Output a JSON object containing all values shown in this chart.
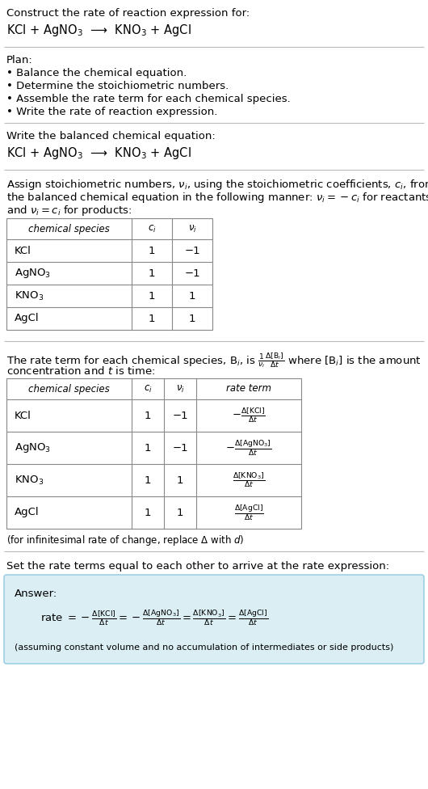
{
  "title_line1": "Construct the rate of reaction expression for:",
  "title_line2": "KCl + AgNO$_3$  ⟶  KNO$_3$ + AgCl",
  "plan_header": "Plan:",
  "plan_items": [
    "• Balance the chemical equation.",
    "• Determine the stoichiometric numbers.",
    "• Assemble the rate term for each chemical species.",
    "• Write the rate of reaction expression."
  ],
  "balanced_header": "Write the balanced chemical equation:",
  "balanced_eq": "KCl + AgNO$_3$  ⟶  KNO$_3$ + AgCl",
  "stoich_intro1": "Assign stoichiometric numbers, $\\nu_i$, using the stoichiometric coefficients, $c_i$, from",
  "stoich_intro2": "the balanced chemical equation in the following manner: $\\nu_i = -c_i$ for reactants",
  "stoich_intro3": "and $\\nu_i = c_i$ for products:",
  "table1_headers": [
    "chemical species",
    "$c_i$",
    "$\\nu_i$"
  ],
  "table1_rows": [
    [
      "KCl",
      "1",
      "−1"
    ],
    [
      "AgNO$_3$",
      "1",
      "−1"
    ],
    [
      "KNO$_3$",
      "1",
      "1"
    ],
    [
      "AgCl",
      "1",
      "1"
    ]
  ],
  "rate_intro1": "The rate term for each chemical species, B$_i$, is $\\frac{1}{\\nu_i}\\frac{\\Delta[\\mathrm{B}_i]}{\\Delta t}$ where [B$_i$] is the amount",
  "rate_intro2": "concentration and $t$ is time:",
  "table2_headers": [
    "chemical species",
    "$c_i$",
    "$\\nu_i$",
    "rate term"
  ],
  "table2_rows": [
    [
      "KCl",
      "1",
      "−1",
      "$-\\frac{\\Delta[\\mathrm{KCl}]}{\\Delta t}$"
    ],
    [
      "AgNO$_3$",
      "1",
      "−1",
      "$-\\frac{\\Delta[\\mathrm{AgNO_3}]}{\\Delta t}$"
    ],
    [
      "KNO$_3$",
      "1",
      "1",
      "$\\frac{\\Delta[\\mathrm{KNO_3}]}{\\Delta t}$"
    ],
    [
      "AgCl",
      "1",
      "1",
      "$\\frac{\\Delta[\\mathrm{AgCl}]}{\\Delta t}$"
    ]
  ],
  "infinitesimal_note": "(for infinitesimal rate of change, replace Δ with $d$)",
  "set_equal_header": "Set the rate terms equal to each other to arrive at the rate expression:",
  "answer_label": "Answer:",
  "answer_box_color": "#daeef3",
  "answer_eq": "rate $= -\\frac{\\Delta[\\mathrm{KCl}]}{\\Delta t} = -\\frac{\\Delta[\\mathrm{AgNO_3}]}{\\Delta t} = \\frac{\\Delta[\\mathrm{KNO_3}]}{\\Delta t} = \\frac{\\Delta[\\mathrm{AgCl}]}{\\Delta t}$",
  "answer_footnote": "(assuming constant volume and no accumulation of intermediates or side products)",
  "bg_color": "#ffffff",
  "text_color": "#000000",
  "divider_color": "#cccccc",
  "font_size_body": 9.5,
  "font_size_small": 8.5,
  "font_size_eq": 10.5
}
